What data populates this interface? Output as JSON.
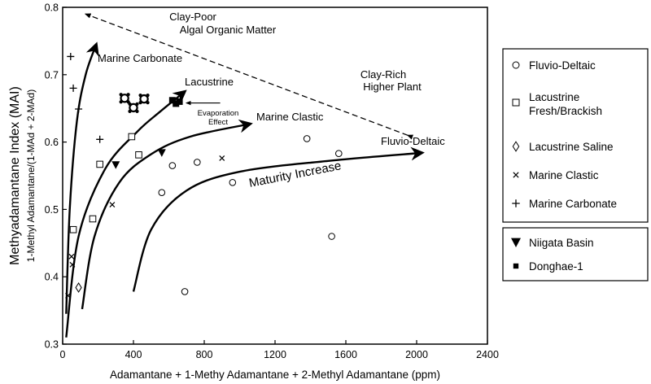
{
  "chart_data": {
    "type": "scatter",
    "title": "",
    "xlabel": "Adamantane + 1-Methy Adamantane + 2-Methyl Adamantane (ppm)",
    "ylabel": "Methyadamantane Index (MAI)",
    "ylabel_sub": "1-Methyl Adamantane/(1-MAd + 2-MAd)",
    "xlim": [
      0,
      2400
    ],
    "ylim": [
      0.3,
      0.8
    ],
    "x_ticks": [
      0,
      400,
      800,
      1200,
      1600,
      2000,
      2400
    ],
    "y_ticks": [
      0.3,
      0.4,
      0.5,
      0.6,
      0.7,
      0.8
    ],
    "series": [
      {
        "name": "Fluvio-Deltaic",
        "marker": "circle",
        "points": [
          [
            560,
            0.525
          ],
          [
            620,
            0.565
          ],
          [
            760,
            0.57
          ],
          [
            960,
            0.54
          ],
          [
            1380,
            0.605
          ],
          [
            1560,
            0.583
          ],
          [
            1520,
            0.46
          ],
          [
            690,
            0.378
          ]
        ]
      },
      {
        "name": "Lacustrine Fresh/Brackish",
        "marker": "square",
        "points": [
          [
            60,
            0.47
          ],
          [
            170,
            0.486
          ],
          [
            210,
            0.567
          ],
          [
            390,
            0.608
          ],
          [
            430,
            0.581
          ]
        ]
      },
      {
        "name": "Lacustrine Saline",
        "marker": "diamond",
        "points": [
          [
            90,
            0.384
          ]
        ]
      },
      {
        "name": "Marine Clastic",
        "marker": "x",
        "points": [
          [
            30,
            0.372
          ],
          [
            50,
            0.43
          ],
          [
            55,
            0.418
          ],
          [
            280,
            0.507
          ],
          [
            900,
            0.576
          ]
        ]
      },
      {
        "name": "Marine Carbonate",
        "marker": "plus",
        "points": [
          [
            45,
            0.727
          ],
          [
            60,
            0.68
          ],
          [
            90,
            0.649
          ],
          [
            210,
            0.604
          ]
        ]
      },
      {
        "name": "Niigata Basin",
        "marker": "triangle-down",
        "points": [
          [
            300,
            0.566
          ],
          [
            560,
            0.584
          ]
        ]
      },
      {
        "name": "Donghae-1",
        "marker": "filled-square",
        "points": [
          [
            620,
            0.662
          ],
          [
            640,
            0.657
          ],
          [
            660,
            0.66
          ]
        ]
      }
    ],
    "special_points": [
      [
        350,
        0.665
      ],
      [
        400,
        0.651
      ],
      [
        460,
        0.664
      ]
    ],
    "curves": [
      {
        "label": "Marine Carbonate",
        "points": [
          [
            20,
            0.345
          ],
          [
            40,
            0.5
          ],
          [
            80,
            0.63
          ],
          [
            130,
            0.7
          ],
          [
            190,
            0.745
          ]
        ]
      },
      {
        "label": "Lacustrine",
        "points": [
          [
            20,
            0.31
          ],
          [
            90,
            0.46
          ],
          [
            240,
            0.56
          ],
          [
            420,
            0.615
          ],
          [
            550,
            0.645
          ],
          [
            690,
            0.675
          ]
        ]
      },
      {
        "label": "Marine Clastic",
        "points": [
          [
            110,
            0.352
          ],
          [
            180,
            0.46
          ],
          [
            320,
            0.54
          ],
          [
            500,
            0.582
          ],
          [
            720,
            0.608
          ],
          [
            1060,
            0.627
          ]
        ]
      },
      {
        "label": "Fluvio-Deltaic",
        "points": [
          [
            400,
            0.378
          ],
          [
            500,
            0.47
          ],
          [
            700,
            0.528
          ],
          [
            1000,
            0.556
          ],
          [
            1500,
            0.572
          ],
          [
            2030,
            0.584
          ]
        ]
      }
    ],
    "dashed_arrow": {
      "from": [
        1950,
        0.61
      ],
      "to": [
        130,
        0.79
      ]
    },
    "evaporation_arrow": {
      "from": [
        890,
        0.658
      ],
      "to": [
        700,
        0.658
      ]
    },
    "annotations": {
      "clay_poor_line1": "Clay-Poor",
      "clay_poor_line2": "Algal Organic Matter",
      "clay_rich_line1": "Clay-Rich",
      "clay_rich_line2": "Higher Plant",
      "evaporation_line1": "Evaporation",
      "evaporation_line2": "Effect",
      "maturity": "Maturity Increase",
      "curve_marine_carbonate": "Marine Carbonate",
      "curve_lacustrine": "Lacustrine",
      "curve_marine_clastic": "Marine Clastic",
      "curve_fluvio_deltaic": "Fluvio-Deltaic"
    },
    "legend": {
      "position": "right",
      "entries_group1": [
        {
          "marker": "circle",
          "line1": "Fluvio-Deltaic",
          "line2": ""
        },
        {
          "marker": "square",
          "line1": "Lacustrine",
          "line2": "Fresh/Brackish"
        },
        {
          "marker": "diamond",
          "line1": "Lacustrine Saline",
          "line2": ""
        },
        {
          "marker": "x",
          "line1": "Marine Clastic",
          "line2": ""
        },
        {
          "marker": "plus",
          "line1": "Marine Carbonate",
          "line2": ""
        }
      ],
      "entries_group2": [
        {
          "marker": "triangle-down",
          "line1": "Niigata Basin",
          "line2": ""
        },
        {
          "marker": "filled-square",
          "line1": "Donghae-1",
          "line2": ""
        }
      ]
    }
  }
}
